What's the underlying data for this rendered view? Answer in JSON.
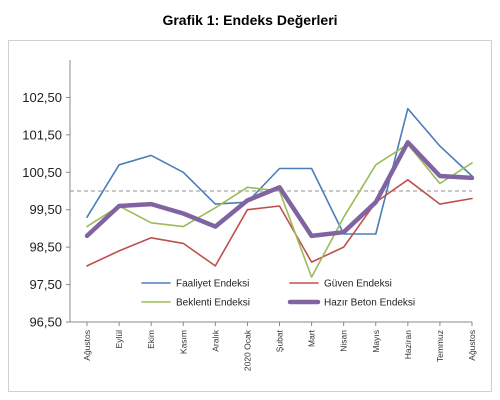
{
  "page": {
    "title": "Grafik 1: Endeks Değerleri"
  },
  "chart_data": {
    "type": "line",
    "title": "Grafik 1: Endeks Değerleri",
    "categories": [
      "Ağustos",
      "Eylül",
      "Ekim",
      "Kasım",
      "Aralık",
      "2020 Ocak",
      "Şubat",
      "Mart",
      "Nisan",
      "Mayıs",
      "Haziran",
      "Temmuz",
      "Ağustos"
    ],
    "ylim": [
      96.5,
      103.5
    ],
    "yticks": [
      96.5,
      97.5,
      98.5,
      99.5,
      100.5,
      101.5,
      102.5
    ],
    "ytick_labels": [
      "96,50",
      "97,50",
      "98,50",
      "99,50",
      "100,50",
      "101,50",
      "102,50"
    ],
    "reference_line": 100.0,
    "grid": false,
    "legend_position": "bottom-center",
    "series": [
      {
        "name": "Faaliyet Endeksi",
        "color": "#4a7ebb",
        "width": 1.6,
        "values": [
          99.3,
          100.7,
          100.95,
          100.5,
          99.65,
          99.7,
          100.6,
          100.6,
          98.85,
          98.85,
          102.2,
          101.2,
          100.4
        ]
      },
      {
        "name": "Güven Endeksi",
        "color": "#c0504d",
        "width": 1.6,
        "values": [
          98.0,
          98.4,
          98.75,
          98.6,
          98.0,
          99.5,
          99.6,
          98.1,
          98.5,
          99.7,
          100.3,
          99.65,
          99.8
        ]
      },
      {
        "name": "Beklenti Endeksi",
        "color": "#9bbb59",
        "width": 1.6,
        "values": [
          99.05,
          99.6,
          99.15,
          99.05,
          99.55,
          100.1,
          100.0,
          97.7,
          99.3,
          100.7,
          101.25,
          100.2,
          100.75
        ]
      },
      {
        "name": "Hazır Beton Endeksi",
        "color": "#8064a2",
        "width": 4.5,
        "values": [
          98.8,
          99.6,
          99.65,
          99.4,
          99.05,
          99.75,
          100.1,
          98.8,
          98.9,
          99.7,
          101.3,
          100.4,
          100.35
        ]
      }
    ]
  }
}
